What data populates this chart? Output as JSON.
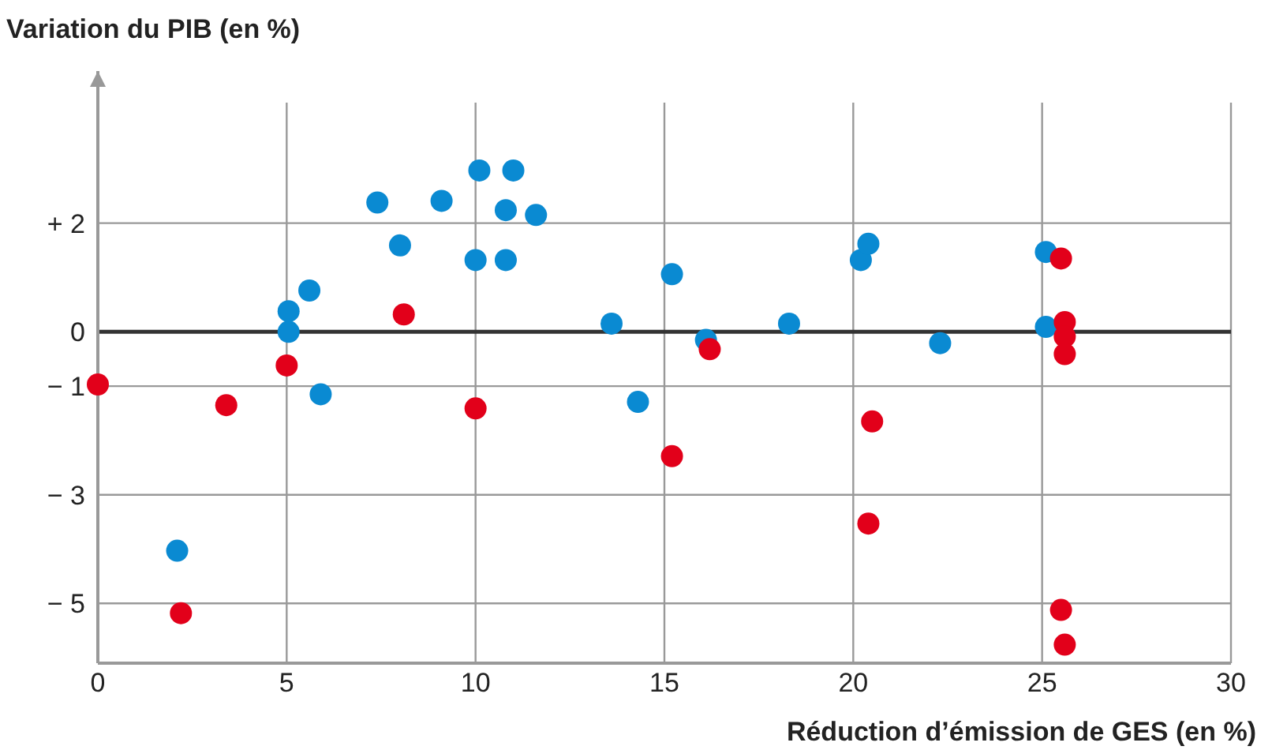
{
  "chart_data": {
    "type": "scatter",
    "ylabel": "Variation du PIB (en %)",
    "xlabel": "Réduction d’émission de GES (en %)",
    "xlim": [
      0,
      30
    ],
    "xticks": [
      0,
      5,
      10,
      15,
      20,
      25,
      30
    ],
    "ylim": [
      -6.1,
      4.8
    ],
    "yticks": [
      {
        "value": 2,
        "label": "+ 2"
      },
      0,
      {
        "value": -1,
        "label": "− 1"
      },
      {
        "value": -3,
        "label": "− 3"
      },
      {
        "value": -5,
        "label": "− 5"
      }
    ],
    "grid": true,
    "marker": "circle",
    "ref_lines": [
      {
        "axis": "y",
        "value": 0,
        "color": "#333333"
      }
    ],
    "series": [
      {
        "color": "#0a8ad2",
        "x": [
          2.1,
          5.05,
          5.05,
          5.6,
          5.9,
          7.4,
          8.0,
          9.1,
          10.1,
          11.0,
          10.8,
          11.6,
          10.0,
          10.8,
          13.6,
          14.3,
          15.2,
          16.1,
          18.3,
          20.2,
          20.4,
          22.3,
          25.1,
          25.1
        ],
        "values": [
          -4.03,
          0.38,
          0,
          0.76,
          -1.15,
          2.38,
          1.59,
          2.41,
          2.97,
          2.97,
          2.24,
          2.15,
          1.32,
          1.32,
          0.15,
          -1.29,
          1.06,
          -0.15,
          0.15,
          1.32,
          1.62,
          -0.21,
          1.47,
          0.09
        ]
      },
      {
        "color": "#e2001a",
        "x": [
          0,
          2.2,
          3.4,
          5.0,
          8.1,
          10.0,
          15.2,
          16.2,
          20.5,
          20.4,
          25.5,
          25.6,
          25.6,
          25.6,
          25.5,
          25.6
        ],
        "values": [
          -0.97,
          -5.18,
          -1.35,
          -0.62,
          0.32,
          -1.41,
          -2.29,
          -0.32,
          -1.65,
          -3.53,
          1.35,
          0.18,
          -0.09,
          -0.41,
          -5.12,
          -5.76
        ]
      }
    ]
  }
}
